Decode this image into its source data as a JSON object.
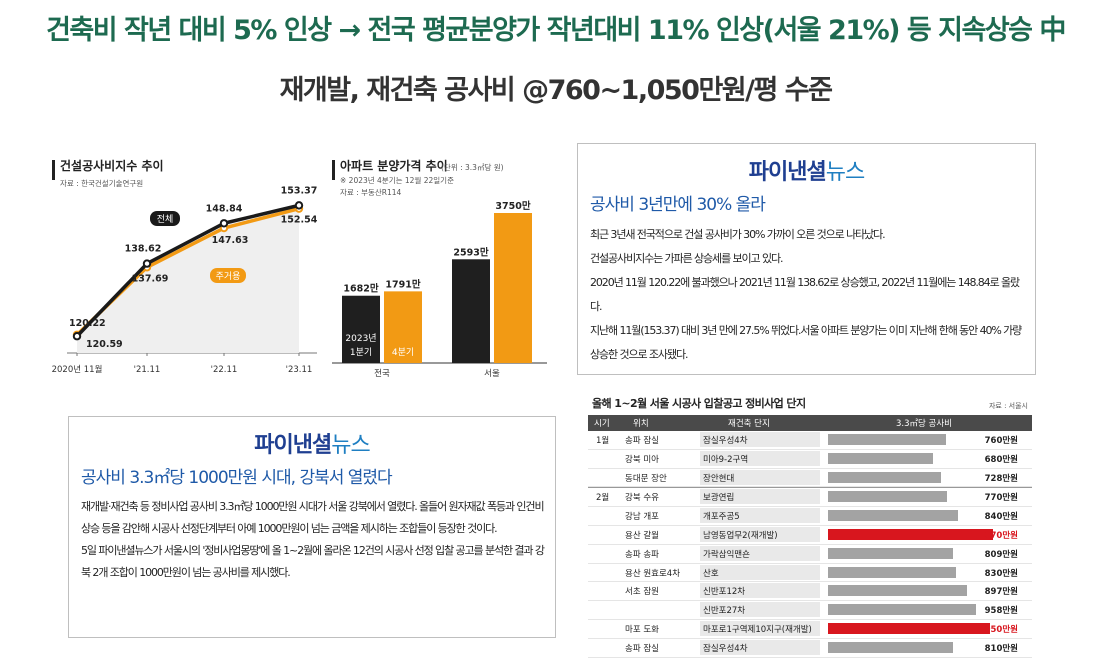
{
  "headline": {
    "line1": "건축비 작년 대비 5% 인상 → 전국 평균분양가 작년대비 11% 인상(서울 21%) 등 지속상승 中",
    "line2": "재개발, 재건축 공사비 @760~1,050만원/평 수준"
  },
  "chart_data": [
    {
      "type": "line",
      "title": "건설공사비지수 추이",
      "source": "자료 : 한국건설기술연구원",
      "categories": [
        "2020년 11월",
        "'21.11",
        "'22.11",
        "'23.11"
      ],
      "series": [
        {
          "name": "전체",
          "values": [
            120.22,
            138.62,
            148.84,
            153.37
          ],
          "color": "#1a1a1a"
        },
        {
          "name": "주거용",
          "values": [
            120.59,
            137.69,
            147.63,
            152.54
          ],
          "color": "#f29a14"
        }
      ],
      "value_labels": {
        "전체": [
          "120.22",
          "138.62",
          "148.84",
          "153.37"
        ],
        "주거용": [
          "120.59",
          "137.69",
          "147.63",
          "152.54"
        ]
      },
      "ylim": [
        110,
        160
      ]
    },
    {
      "type": "bar",
      "title": "아파트 분양가격 추이",
      "unit": "(단위 : 3.3㎡당 원)",
      "note": "※ 2023년 4분기는 12월 22일기준",
      "source": "자료 : 부동산R114",
      "categories": [
        "전국",
        "서울"
      ],
      "series": [
        {
          "name": "2023년 1분기",
          "values": [
            1682,
            2593
          ],
          "color": "#1f1f1f"
        },
        {
          "name": "4분기",
          "values": [
            1791,
            3750
          ],
          "color": "#f29a14"
        }
      ],
      "value_labels": [
        [
          "1682만",
          "2593만"
        ],
        [
          "1791만",
          "3750만"
        ]
      ],
      "ylim": [
        0,
        4000
      ]
    }
  ],
  "news_top": {
    "logo_a": "파이낸셜",
    "logo_b": "뉴스",
    "headline": "공사비 3년만에 30% 올라",
    "paragraphs": [
      "최근 3년새 전국적으로 건설 공사비가 30% 가까이 오른 것으로 나타났다.",
      "건설공사비지수는 가파른 상승세를 보이고 있다.",
      "2020년 11월 120.22에 불과했으나 2021년 11월 138.62로 상승했고, 2022년 11월에는 148.84로 올랐다.",
      "지난해 11월(153.37) 대비 3년 만에 27.5% 뛰었다.서울 아파트 분양가는 이미 지난해 한해 동안 40% 가량 상승한 것으로 조사됐다."
    ]
  },
  "news_bottom": {
    "logo_a": "파이낸셜",
    "logo_b": "뉴스",
    "headline": "공사비 3.3㎡당 1000만원 시대, 강북서 열렸다",
    "paragraphs": [
      "재개발·재건축 등 정비사업 공사비 3.3㎡당 1000만원 시대가 서울 강북에서 열렸다. 올들어 원자재값 폭등과 인건비 상승 등을 감안해 시공사 선정단계부터 아예 1000만원이 넘는 금액을 제시하는 조합들이 등장한 것이다.",
      "5일 파이낸셜뉴스가 서울시의 '정비사업몽땅'에 올 1~2월에 올라온 12건의 시공사 선정 입찰 공고를 분석한 결과 강북 2개 조합이 1000만원이 넘는 공사비를 제시했다."
    ]
  },
  "table": {
    "title": "올해 1~2월 서울 시공사 입찰공고 정비사업 단지",
    "source": "자료 : 서울시",
    "headers": [
      "시기",
      "위치",
      "재건축 단지",
      "3.3㎡당 공사비"
    ],
    "max_value": 1100,
    "highlight_color": "#d8161e",
    "rows": [
      {
        "period": "1월",
        "location": "송파 잠실",
        "name": "잠실우성4차",
        "value": 760,
        "cost": "760만원",
        "highlight": false
      },
      {
        "period": "",
        "location": "강북 미아",
        "name": "미아9-2구역",
        "value": 680,
        "cost": "680만원",
        "highlight": false
      },
      {
        "period": "",
        "location": "동대문 장안",
        "name": "장안현대",
        "value": 728,
        "cost": "728만원",
        "highlight": false
      },
      {
        "period": "2월",
        "location": "강북 수유",
        "name": "보광연립",
        "value": 770,
        "cost": "770만원",
        "highlight": false
      },
      {
        "period": "",
        "location": "강남 개포",
        "name": "개포주공5",
        "value": 840,
        "cost": "840만원",
        "highlight": false
      },
      {
        "period": "",
        "location": "용산 갈월",
        "name": "남영동업무2(재개발)",
        "value": 1070,
        "cost": "1070만원",
        "highlight": true
      },
      {
        "period": "",
        "location": "송파 송파",
        "name": "가락삼익맨숀",
        "value": 809,
        "cost": "809만원",
        "highlight": false
      },
      {
        "period": "",
        "location": "용산 원효로4차",
        "name": "산호",
        "value": 830,
        "cost": "830만원",
        "highlight": false
      },
      {
        "period": "",
        "location": "서초 잠원",
        "name": "신반포12차",
        "value": 897,
        "cost": "897만원",
        "highlight": false
      },
      {
        "period": "",
        "location": "",
        "name": "신반포27차",
        "value": 958,
        "cost": "958만원",
        "highlight": false
      },
      {
        "period": "",
        "location": "마포 도화",
        "name": "마포로1구역제10지구(재개발)",
        "value": 1050,
        "cost": "1050만원",
        "highlight": true
      },
      {
        "period": "",
        "location": "송파 잠실",
        "name": "잠실우성4차",
        "value": 810,
        "cost": "810만원",
        "highlight": false
      }
    ]
  }
}
